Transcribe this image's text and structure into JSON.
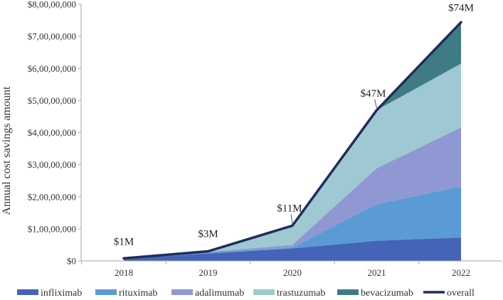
{
  "chart_data": {
    "type": "area",
    "stacked": true,
    "title": "",
    "xlabel": "",
    "ylabel": "Annual cost savings amount",
    "categories": [
      "2018",
      "2019",
      "2020",
      "2021",
      "2022"
    ],
    "ylim": [
      0,
      80000000
    ],
    "yticks": [
      0,
      10000000,
      20000000,
      30000000,
      40000000,
      50000000,
      60000000,
      70000000,
      80000000
    ],
    "ytick_labels": [
      "$0",
      "$1,00,00,000",
      "$2,00,00,000",
      "$3,00,00,000",
      "$4,00,00,000",
      "$5,00,00,000",
      "$6,00,00,000",
      "$7,00,00,000",
      "$8,00,00,000"
    ],
    "grid": false,
    "legend_position": "bottom",
    "series": [
      {
        "name": "infliximab",
        "color": "#4464b8",
        "values": [
          800000,
          2300000,
          3900000,
          6300000,
          7300000
        ]
      },
      {
        "name": "rituximab",
        "color": "#5b9bd5",
        "values": [
          0,
          300000,
          300000,
          11400000,
          15900000
        ]
      },
      {
        "name": "adalimumab",
        "color": "#8f98d3",
        "values": [
          0,
          200000,
          800000,
          11200000,
          18400000
        ]
      },
      {
        "name": "trastuzumab",
        "color": "#9ec8d2",
        "values": [
          0,
          200000,
          6000000,
          18100000,
          19900000
        ]
      },
      {
        "name": "bevacizumab",
        "color": "#3f7b84",
        "values": [
          0,
          0,
          0,
          0,
          12900000
        ]
      }
    ],
    "overall": {
      "name": "overall",
      "color": "#1f2d5a",
      "values": [
        800000,
        3000000,
        11000000,
        47000000,
        74400000
      ]
    },
    "annotations": [
      "$1M",
      "$3M",
      "$11M",
      "$47M",
      "$74M"
    ]
  }
}
